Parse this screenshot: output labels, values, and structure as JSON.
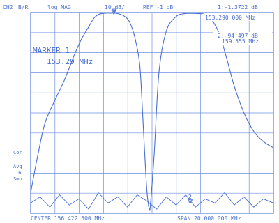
{
  "header": {
    "channel": "CH2",
    "format": "B/R",
    "mode": "log MAG",
    "scale": "10 dB/",
    "reference": "REF -1 dB"
  },
  "markers": {
    "m1_readout": "1:-1.3722 dB",
    "m1_freq": "153.290 000 MHz",
    "m2_readout": "2:-94.497 dB",
    "m2_freq": "159.555 MHz",
    "active_label": "MARKER 1",
    "active_value": "153.29 MHz",
    "m2_symbol": "2"
  },
  "annotations": {
    "cor": "Cor",
    "avg": "Avg",
    "avg_count": "16",
    "smo": "Smo"
  },
  "footer": {
    "center": "CENTER  156.422 500 MHz",
    "span": "SPAN    20.000 000 MHz"
  },
  "colors": {
    "ink": "#4a6fd1",
    "grid": "#6f8fe0",
    "background": "#ffffff"
  },
  "chart_data": {
    "type": "line",
    "title": "",
    "xlabel": "",
    "ylabel": "",
    "x_range_mhz": [
      146.4225,
      166.4225
    ],
    "y_range_db": [
      -99,
      -1
    ],
    "y_scale_db_per_div": 10,
    "grid": true,
    "series": [
      {
        "x": [
          146.42,
          147.0,
          147.6,
          148.4,
          149.2,
          150.0,
          150.6,
          151.2,
          151.6,
          152.0,
          152.4,
          153.0,
          153.6,
          154.2,
          154.6,
          155.0,
          155.4,
          155.6,
          155.8,
          156.0,
          156.2,
          156.3,
          156.6,
          157.0,
          157.6,
          158.4,
          159.0,
          159.6,
          160.2,
          160.8,
          161.4,
          162.0,
          162.6,
          163.2,
          164.0,
          164.8,
          165.6,
          166.42
        ],
        "y": [
          -89,
          -71,
          -55,
          -44,
          -34,
          -22,
          -14,
          -8,
          -4,
          -2,
          -1.4,
          -1.3,
          -1.5,
          -3,
          -6,
          -13,
          -26,
          -45,
          -68,
          -88,
          -97,
          -94,
          -70,
          -30,
          -10,
          -3,
          -1.6,
          -1.4,
          -1.5,
          -2,
          -5,
          -12,
          -24,
          -37,
          -50,
          -59,
          -64,
          -67
        ]
      },
      {
        "x": [
          146.42,
          147.2,
          148.0,
          148.8,
          149.6,
          150.4,
          151.2,
          152.0,
          152.8,
          153.6,
          154.4,
          155.2,
          156.0,
          156.8,
          157.6,
          158.4,
          159.2,
          160.0,
          160.8,
          161.6,
          162.4,
          163.2,
          164.0,
          164.8,
          165.6,
          166.42
        ],
        "y": [
          -94,
          -91,
          -96,
          -90,
          -95,
          -92,
          -97,
          -89,
          -94,
          -91,
          -96,
          -90,
          -93,
          -97,
          -91,
          -95,
          -90,
          -96,
          -92,
          -94,
          -89,
          -95,
          -91,
          -96,
          -92,
          -94
        ]
      }
    ],
    "markers": [
      {
        "id": 1,
        "x": 153.29,
        "y": -1.3722
      },
      {
        "id": 2,
        "x": 159.555,
        "y": -94.497
      }
    ]
  }
}
